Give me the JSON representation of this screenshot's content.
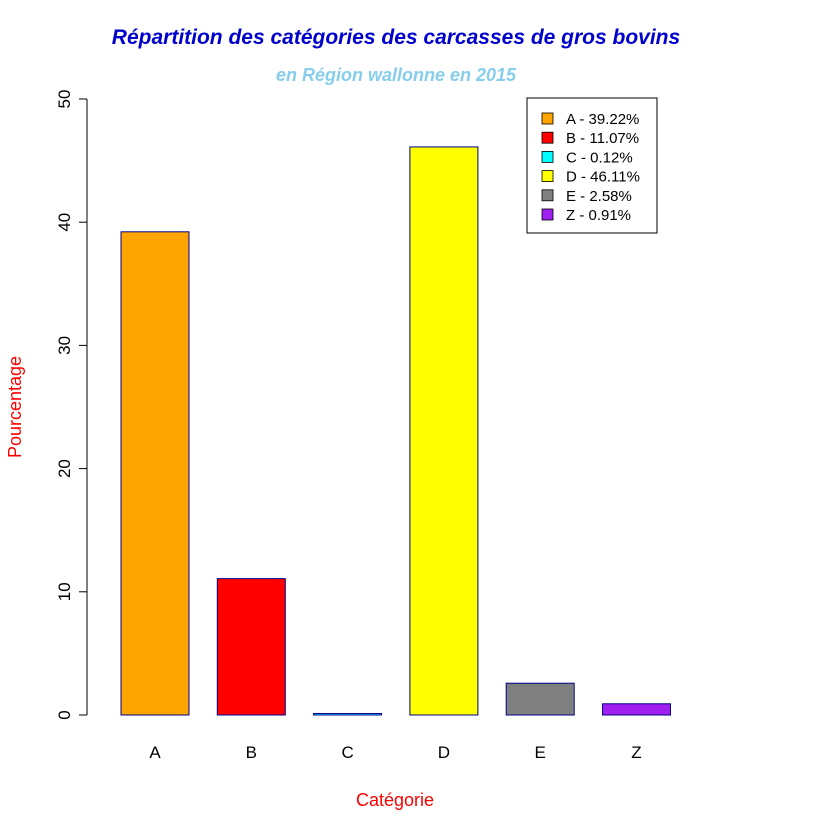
{
  "chart_data": {
    "type": "bar",
    "title": "Répartition des catégories des carcasses de gros bovins",
    "subtitle": "en Région wallonne en 2015",
    "xlabel": "Catégorie",
    "ylabel": "Pourcentage",
    "categories": [
      "A",
      "B",
      "C",
      "D",
      "E",
      "Z"
    ],
    "values": [
      39.22,
      11.07,
      0.12,
      46.11,
      2.58,
      0.91
    ],
    "colors": [
      "#FFA500",
      "#FF0000",
      "#00FFFF",
      "#FFFF00",
      "#808080",
      "#A020F0"
    ],
    "bar_border_color": "#00008B",
    "ylim": [
      0,
      50
    ],
    "yticks": [
      "0",
      "10",
      "20",
      "30",
      "40",
      "50"
    ],
    "title_color": "#0000CD",
    "subtitle_color": "#87CEEB",
    "axis_label_color": "#FF0000",
    "grid": false,
    "legend": {
      "placement": "top-right",
      "entries": [
        "A - 39.22%",
        "B - 11.07%",
        "C - 0.12%",
        "D - 46.11%",
        "E - 2.58%",
        "Z - 0.91%"
      ]
    }
  }
}
